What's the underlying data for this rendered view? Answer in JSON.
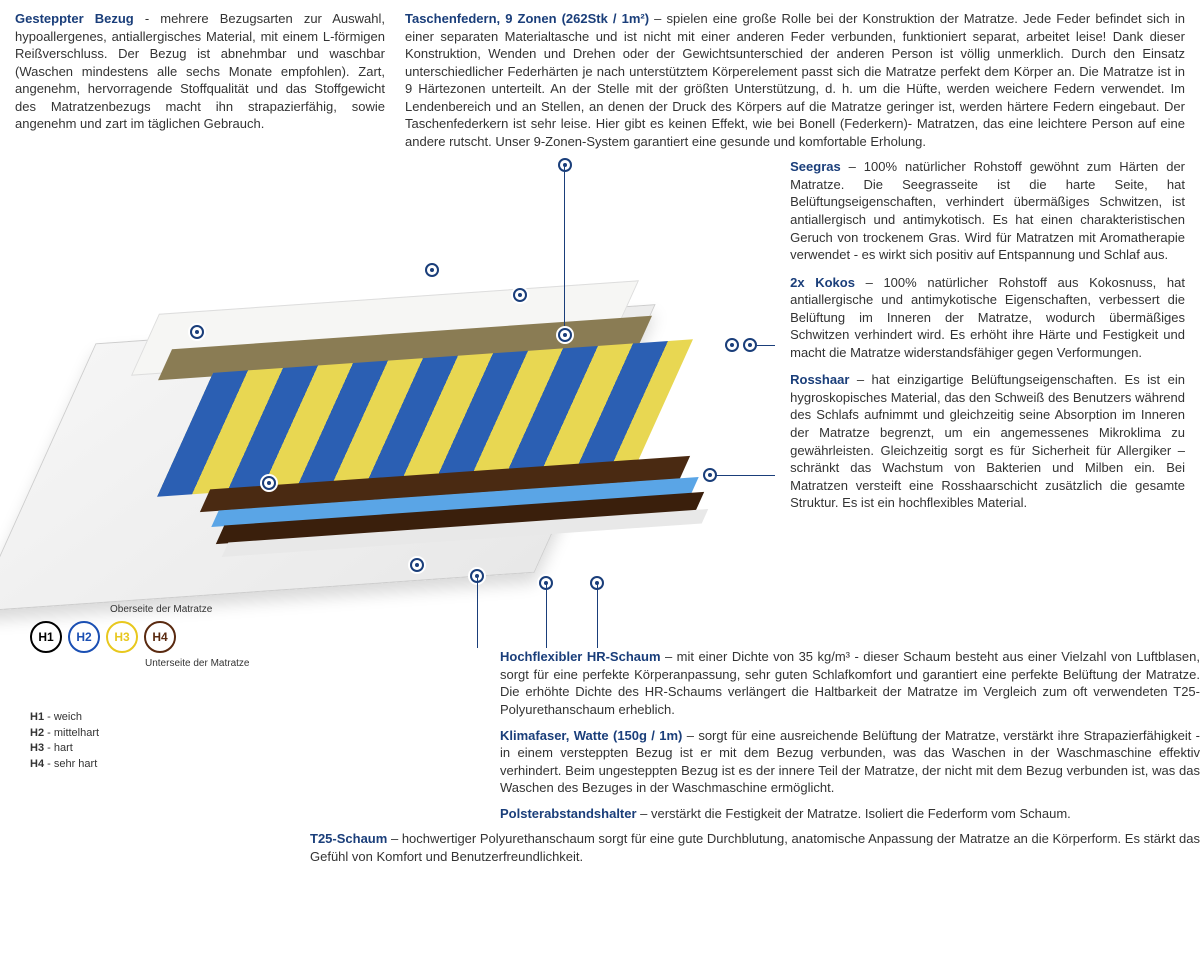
{
  "top": {
    "left_head": "Gesteppter Bezug",
    "left_body": " - mehrere Bezugsarten zur Auswahl, hypoallergenes, antiallergisches Material, mit einem L-förmigen Reißverschluss. Der Bezug ist abnehmbar und waschbar (Waschen mindestens alle sechs Monate empfohlen). Zart, angenehm, hervorragende Stoffqualität und das Stoffgewicht des Matratzenbezugs macht ihn strapazierfähig, sowie angenehm und zart im täglichen Gebrauch.",
    "right_head": "Taschenfedern, 9 Zonen (262Stk / 1m²)",
    "right_body": " – spielen eine große Rolle bei der Konstruktion der Matratze. Jede Feder befindet sich in einer separaten Materialtasche und ist nicht mit einer anderen Feder verbunden, funktioniert separat, arbeitet leise! Dank dieser Konstruktion, Wenden und Drehen oder der Gewichtsunterschied der anderen Person ist völlig unmerklich. Durch den Einsatz unterschiedlicher Federhärten je nach unterstütztem Körperelement passt sich die Matratze perfekt dem Körper an. Die Matratze ist in 9 Härtezonen unterteilt. An der Stelle mit der größten Unterstützung, d. h. um die Hüfte, werden weichere Federn verwendet. Im Lendenbereich und an Stellen, an denen der Druck des Körpers auf die Matratze geringer ist, werden härtere Federn eingebaut. Der Taschenfederkern ist sehr leise. Hier gibt es keinen Effekt, wie bei Bonell (Federkern)- Matratzen, das eine leichtere Person auf eine andere rutscht. Unser 9-Zonen-System garantiert eine gesunde und komfortable Erholung."
  },
  "right_sections": [
    {
      "head": "Seegras",
      "body": " – 100% natürlicher Rohstoff gewöhnt zum Härten der Matratze. Die Seegrasseite ist die harte Seite, hat Belüftungseigenschaften, verhindert übermäßiges Schwitzen, ist antiallergisch und antimykotisch. Es hat einen charakteristischen Geruch von trockenem Gras. Wird für Matratzen mit Aromatherapie verwendet - es wirkt sich positiv auf Entspannung und Schlaf aus."
    },
    {
      "head": "2x Kokos",
      "body": " – 100% natürlicher Rohstoff aus Kokosnuss, hat antiallergische und antimykotische Eigenschaften, verbessert die Belüftung im Inneren der Matratze, wodurch übermäßiges Schwitzen verhindert wird. Es erhöht ihre Härte und Festigkeit und macht die Matratze widerstandsfähiger gegen Verformungen."
    },
    {
      "head": "Rosshaar",
      "body": " – hat einzigartige Belüftungseigenschaften. Es ist ein hygroskopisches Material, das den Schweiß des Benutzers während des Schlafs aufnimmt und gleichzeitig seine Absorption im Inneren der Matratze begrenzt, um ein angemessenes Mikroklima zu gewährleisten. Gleichzeitig sorgt es für Sicherheit für Allergiker – schränkt das Wachstum von Bakterien und Milben ein. Bei Matratzen versteift eine Rosshaarschicht zusätzlich die gesamte Struktur. Es ist ein hochflexibles Material."
    }
  ],
  "below_sections": [
    {
      "head": "Hochflexibler HR-Schaum",
      "body": " – mit einer Dichte von 35 kg/m³ - dieser Schaum besteht aus einer Vielzahl von Luftblasen, sorgt für eine perfekte Körperanpassung, sehr guten Schlafkomfort und garantiert eine perfekte Belüftung der Matratze. Die erhöhte Dichte des HR-Schaums verlängert die Haltbarkeit der Matratze im Vergleich zum oft verwendeten T25-Polyurethanschaum erheblich.",
      "indent": 190
    },
    {
      "head": "Klimafaser, Watte (150g / 1m)",
      "body": " – sorgt für eine ausreichende Belüftung der Matratze, verstärkt ihre Strapazierfähigkeit - in einem versteppten Bezug ist er mit dem Bezug verbunden, was das Waschen in der Waschmaschine effektiv verhindert. Beim ungesteppten Bezug ist es der innere Teil der Matratze, der nicht mit dem Bezug verbunden ist, was das Waschen des Bezuges in der Waschmaschine ermöglicht.",
      "indent": 190
    },
    {
      "head": "Polsterabstandshalter",
      "body": " – verstärkt die Festigkeit der Matratze. Isoliert die Federform vom Schaum.",
      "indent": 190
    },
    {
      "head": "T25-Schaum",
      "body": " – hochwertiger Polyurethanschaum sorgt für eine gute Durchblutung, anatomische Anpassung der Matratze an die Körperform. Es stärkt das Gefühl von Komfort und Benutzerfreundlichkeit.",
      "indent": 0
    }
  ],
  "legend": {
    "top_label": "Oberseite der Matratze",
    "bot_label": "Unterseite der Matratze",
    "circles": [
      {
        "label": "H1",
        "color": "#000000"
      },
      {
        "label": "H2",
        "color": "#1a4fb3"
      },
      {
        "label": "H3",
        "color": "#e8c81e"
      },
      {
        "label": "H4",
        "color": "#5a2a10"
      }
    ],
    "keys": [
      {
        "k": "H1",
        "v": " - weich"
      },
      {
        "k": "H2",
        "v": " - mittelhart"
      },
      {
        "k": "H3",
        "v": " - hart"
      },
      {
        "k": "H4",
        "v": " - sehr hart"
      }
    ]
  },
  "colors": {
    "heading": "#1a3e7a",
    "marker_border": "#1a3e7a"
  }
}
